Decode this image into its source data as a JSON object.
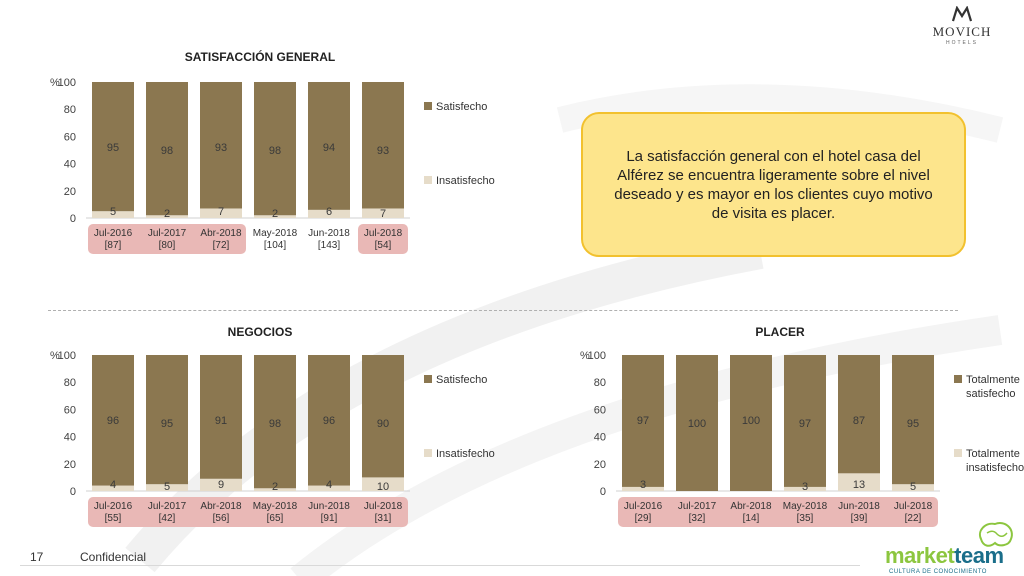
{
  "logo": {
    "brand": "MOVICH",
    "sub": "HOTELS"
  },
  "callout": {
    "text": "La satisfacción general con el hotel casa del Alférez se encuentra ligeramente sobre el nivel deseado y es mayor en los clientes cuyo motivo de visita es placer."
  },
  "footer": {
    "page": "17",
    "label": "Confidencial",
    "partner_a": "market",
    "partner_b": "team",
    "partner_tag": "CULTURA DE CONOCIMIENTO"
  },
  "colors": {
    "series_main": "#8b7750",
    "series_minor": "#e6dcc9",
    "highlight": "#e9b8b6",
    "text": "#404040"
  },
  "chart_data": [
    {
      "id": "general",
      "type": "bar",
      "title": "SATISFACCIÓN GENERAL",
      "stacked": true,
      "categories": [
        "Jul-2016",
        "Jul-2017",
        "Abr-2018",
        "May-2018",
        "Jun-2018",
        "Jul-2018"
      ],
      "bases": [
        "[87]",
        "[80]",
        "[72]",
        "[104]",
        "[143]",
        "[54]"
      ],
      "highlighted": [
        true,
        true,
        true,
        false,
        false,
        true
      ],
      "ylim": [
        0,
        100
      ],
      "yticks": [
        "0",
        "20",
        "40",
        "60",
        "80",
        "100"
      ],
      "yunit": "%",
      "series": [
        {
          "name": "Insatisfecho",
          "values": [
            5,
            2,
            7,
            2,
            6,
            7
          ]
        },
        {
          "name": "Satisfecho",
          "values": [
            95,
            98,
            93,
            98,
            94,
            93
          ]
        }
      ],
      "legend": "right"
    },
    {
      "id": "negocios",
      "type": "bar",
      "title": "NEGOCIOS",
      "stacked": true,
      "categories": [
        "Jul-2016",
        "Jul-2017",
        "Abr-2018",
        "May-2018",
        "Jun-2018",
        "Jul-2018"
      ],
      "bases": [
        "[55]",
        "[42]",
        "[56]",
        "[65]",
        "[91]",
        "[31]"
      ],
      "highlighted": [
        true,
        true,
        true,
        true,
        true,
        true
      ],
      "ylim": [
        0,
        100
      ],
      "yticks": [
        "0",
        "20",
        "40",
        "60",
        "80",
        "100"
      ],
      "yunit": "%",
      "series": [
        {
          "name": "Insatisfecho",
          "values": [
            4,
            5,
            9,
            2,
            4,
            10
          ]
        },
        {
          "name": "Satisfecho",
          "values": [
            96,
            95,
            91,
            98,
            96,
            90
          ]
        }
      ],
      "legend": "right"
    },
    {
      "id": "placer",
      "type": "bar",
      "title": "PLACER",
      "stacked": true,
      "categories": [
        "Jul-2016",
        "Jul-2017",
        "Abr-2018",
        "May-2018",
        "Jun-2018",
        "Jul-2018"
      ],
      "bases": [
        "[29]",
        "[32]",
        "[14]",
        "[35]",
        "[39]",
        "[22]"
      ],
      "highlighted": [
        true,
        true,
        true,
        true,
        true,
        true
      ],
      "ylim": [
        0,
        100
      ],
      "yticks": [
        "0",
        "20",
        "40",
        "60",
        "80",
        "100"
      ],
      "yunit": "%",
      "series": [
        {
          "name": "Totalmente insatisfecho",
          "values": [
            3,
            0,
            0,
            3,
            13,
            5
          ],
          "labels": [
            "3",
            "",
            "",
            "3",
            "13",
            "5"
          ]
        },
        {
          "name": "Totalmente satisfecho",
          "values": [
            97,
            100,
            100,
            97,
            87,
            95
          ]
        }
      ],
      "legend_lines": [
        [
          "Totalmente",
          "satisfecho"
        ],
        [
          "Totalmente",
          "insatisfecho"
        ]
      ],
      "legend": "right"
    }
  ]
}
